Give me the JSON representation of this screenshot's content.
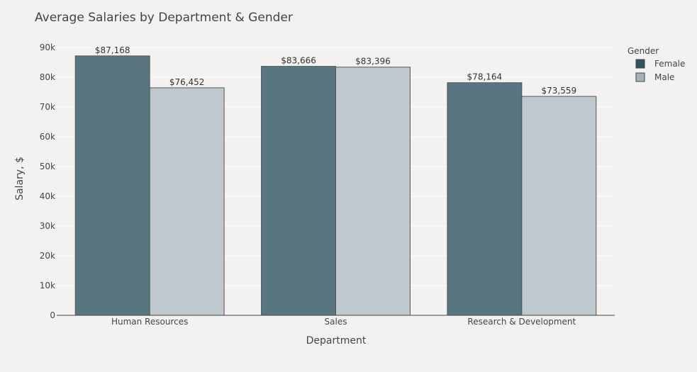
{
  "chart_data": {
    "type": "bar",
    "title": "Average Salaries by Department & Gender",
    "xlabel": "Department",
    "ylabel": "Salary, $",
    "categories": [
      "Human Resources",
      "Sales",
      "Research & Development"
    ],
    "series": [
      {
        "name": "Female",
        "values": [
          87168,
          83666,
          78164
        ],
        "labels": [
          "$87,168",
          "$83,666",
          "$78,164"
        ],
        "color": "#577680"
      },
      {
        "name": "Male",
        "values": [
          76452,
          83396,
          73559
        ],
        "labels": [
          "$76,452",
          "$83,396",
          "$73,559"
        ],
        "color": "#bec8cd"
      }
    ],
    "ylim": [
      0,
      90000
    ],
    "yticks": [
      {
        "value": 0,
        "label": "0"
      },
      {
        "value": 10000,
        "label": "10k"
      },
      {
        "value": 20000,
        "label": "20k"
      },
      {
        "value": 30000,
        "label": "30k"
      },
      {
        "value": 40000,
        "label": "40k"
      },
      {
        "value": 50000,
        "label": "50k"
      },
      {
        "value": 60000,
        "label": "60k"
      },
      {
        "value": 70000,
        "label": "70k"
      },
      {
        "value": 80000,
        "label": "80k"
      },
      {
        "value": 90000,
        "label": "90k"
      }
    ],
    "grid": true,
    "legend": {
      "title": "Gender",
      "position": "top-right",
      "entries": [
        {
          "name": "Female",
          "color": "#2e5563"
        },
        {
          "name": "Male",
          "color": "#a5b3bb"
        }
      ]
    }
  }
}
